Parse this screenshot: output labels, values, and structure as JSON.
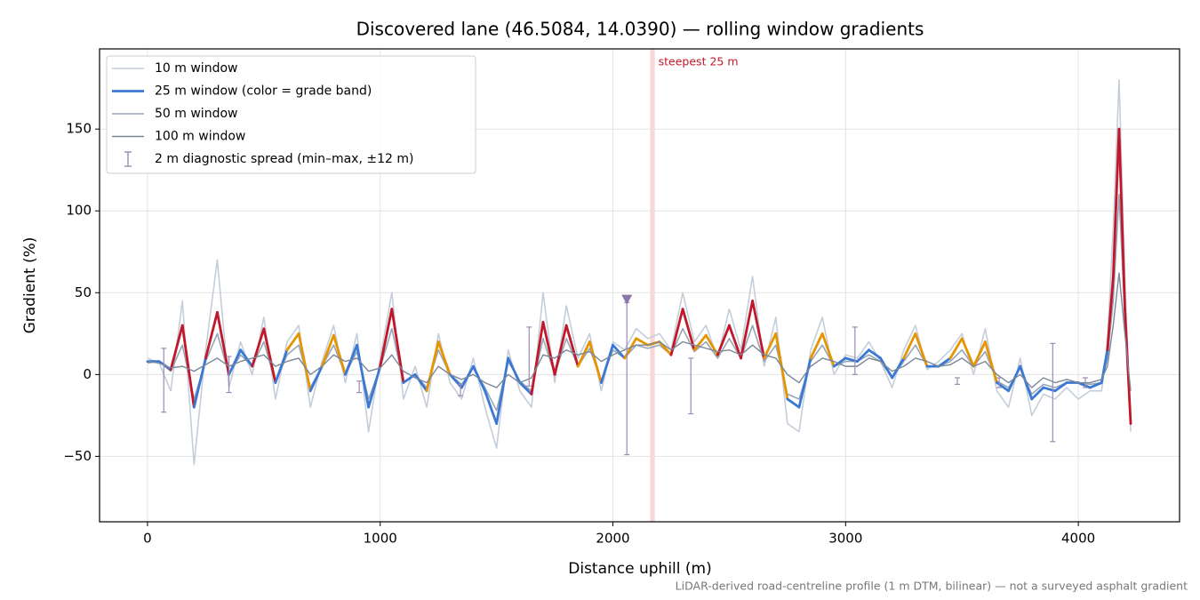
{
  "chart_data": {
    "type": "line",
    "title": "Discovered lane (46.5084, 14.0390) — rolling window gradients",
    "x_label": "Distance uphill (m)",
    "y_label": "Gradient (%)",
    "footnote": "LiDAR-derived road-centreline profile (1 m DTM, bilinear) — not a surveyed asphalt gradient",
    "xlim": [
      -206,
      4435
    ],
    "ylim": [
      -90,
      199
    ],
    "xticks": [
      0,
      1000,
      2000,
      3000,
      4000
    ],
    "yticks": [
      {
        "value": -50,
        "label": "−50"
      },
      0,
      50,
      100,
      150
    ],
    "grid": true,
    "legend": "upper left",
    "x": [
      0,
      50,
      100,
      150,
      200,
      250,
      300,
      350,
      400,
      450,
      500,
      550,
      600,
      650,
      700,
      750,
      800,
      850,
      900,
      950,
      1000,
      1050,
      1100,
      1150,
      1200,
      1250,
      1300,
      1350,
      1400,
      1450,
      1500,
      1550,
      1600,
      1650,
      1700,
      1750,
      1800,
      1850,
      1900,
      1950,
      2000,
      2050,
      2100,
      2150,
      2200,
      2250,
      2300,
      2350,
      2400,
      2450,
      2500,
      2550,
      2600,
      2650,
      2700,
      2750,
      2800,
      2850,
      2900,
      2950,
      3000,
      3050,
      3100,
      3150,
      3200,
      3250,
      3300,
      3350,
      3400,
      3450,
      3500,
      3550,
      3600,
      3650,
      3700,
      3750,
      3800,
      3850,
      3900,
      3950,
      4000,
      4050,
      4100,
      4125,
      4150,
      4175,
      4200,
      4225
    ],
    "series": [
      {
        "name": "10 m window",
        "color": "#c4ceda",
        "values": [
          10,
          7,
          -10,
          45,
          -55,
          15,
          70,
          -8,
          20,
          0,
          35,
          -15,
          20,
          30,
          -20,
          8,
          30,
          -5,
          25,
          -35,
          10,
          50,
          -15,
          5,
          -20,
          25,
          -5,
          -15,
          10,
          -20,
          -45,
          15,
          -10,
          -20,
          50,
          -5,
          42,
          10,
          25,
          -10,
          20,
          15,
          28,
          22,
          25,
          15,
          50,
          20,
          30,
          10,
          40,
          15,
          60,
          5,
          35,
          -30,
          -35,
          15,
          35,
          0,
          12,
          10,
          20,
          8,
          -8,
          15,
          30,
          3,
          8,
          15,
          25,
          0,
          28,
          -10,
          -20,
          10,
          -25,
          -12,
          -15,
          -8,
          -15,
          -10,
          -10,
          20,
          90,
          180,
          60,
          -35
        ]
      },
      {
        "name": "25 m window (color = grade band)",
        "color": "#3a78d4",
        "values": [
          8,
          8,
          3,
          30,
          -20,
          10,
          38,
          0,
          15,
          5,
          28,
          -5,
          15,
          25,
          -10,
          5,
          24,
          0,
          18,
          -20,
          5,
          40,
          -5,
          0,
          -10,
          20,
          0,
          -8,
          5,
          -10,
          -30,
          10,
          -5,
          -12,
          32,
          0,
          30,
          5,
          20,
          -5,
          18,
          10,
          22,
          18,
          20,
          12,
          40,
          15,
          24,
          12,
          30,
          10,
          45,
          10,
          25,
          -15,
          -20,
          10,
          25,
          5,
          10,
          8,
          15,
          10,
          -2,
          10,
          25,
          5,
          5,
          10,
          22,
          5,
          20,
          -5,
          -10,
          5,
          -15,
          -8,
          -10,
          -5,
          -5,
          -8,
          -5,
          15,
          60,
          150,
          40,
          -30
        ]
      },
      {
        "name": "50 m window",
        "color": "#97a6b6",
        "values": [
          7,
          8,
          2,
          18,
          -15,
          8,
          25,
          0,
          12,
          5,
          20,
          -5,
          12,
          18,
          -8,
          5,
          18,
          0,
          14,
          -15,
          4,
          28,
          -5,
          0,
          -8,
          15,
          0,
          -6,
          4,
          -8,
          -22,
          8,
          -4,
          -10,
          22,
          0,
          22,
          5,
          16,
          -4,
          15,
          10,
          18,
          16,
          18,
          12,
          28,
          14,
          20,
          10,
          22,
          10,
          30,
          8,
          18,
          -12,
          -15,
          8,
          18,
          5,
          8,
          8,
          12,
          8,
          -2,
          8,
          18,
          5,
          5,
          8,
          15,
          5,
          14,
          -4,
          -8,
          4,
          -12,
          -6,
          -8,
          -5,
          -5,
          -6,
          -5,
          10,
          45,
          110,
          35,
          -25
        ]
      },
      {
        "name": "100 m window",
        "color": "#7b8899",
        "values": [
          8,
          7,
          4,
          5,
          2,
          6,
          10,
          5,
          8,
          10,
          12,
          5,
          8,
          10,
          0,
          5,
          12,
          8,
          10,
          2,
          4,
          12,
          2,
          -2,
          -5,
          5,
          0,
          -3,
          0,
          -5,
          -8,
          0,
          -5,
          -2,
          12,
          10,
          15,
          12,
          14,
          8,
          12,
          15,
          18,
          18,
          20,
          15,
          20,
          18,
          16,
          14,
          15,
          12,
          18,
          12,
          10,
          0,
          -5,
          5,
          10,
          8,
          5,
          5,
          10,
          8,
          2,
          5,
          10,
          8,
          5,
          6,
          10,
          5,
          8,
          0,
          -5,
          0,
          -8,
          -2,
          -5,
          -3,
          -5,
          -5,
          -3,
          5,
          30,
          62,
          25,
          -10
        ]
      }
    ],
    "band_colors": [
      "#3a78d4",
      "#e69500",
      "#c0182a"
    ],
    "band_limits": [
      18,
      25
    ],
    "errorbars": {
      "name": "2 m diagnostic spread (min–max, ±12 m)",
      "color": "#9b8bb5",
      "x": [
        70,
        350,
        910,
        1345,
        1640,
        2060,
        2335,
        3040,
        3480,
        3660,
        3890,
        4030
      ],
      "low": [
        -23,
        -11,
        -11,
        -13,
        -7,
        -49,
        -24,
        0,
        -6,
        -8,
        -41,
        -8
      ],
      "high": [
        16,
        11,
        -4,
        -6,
        29,
        44,
        10,
        29,
        -2,
        -2,
        19,
        -2
      ]
    },
    "marker": {
      "x": 2060,
      "y": 46,
      "color": "#8a77a8"
    },
    "span": {
      "label": "steepest 25 m",
      "from": 2160,
      "to": 2180,
      "color": "#f7c5c8",
      "label_color": "#c0182a"
    }
  }
}
